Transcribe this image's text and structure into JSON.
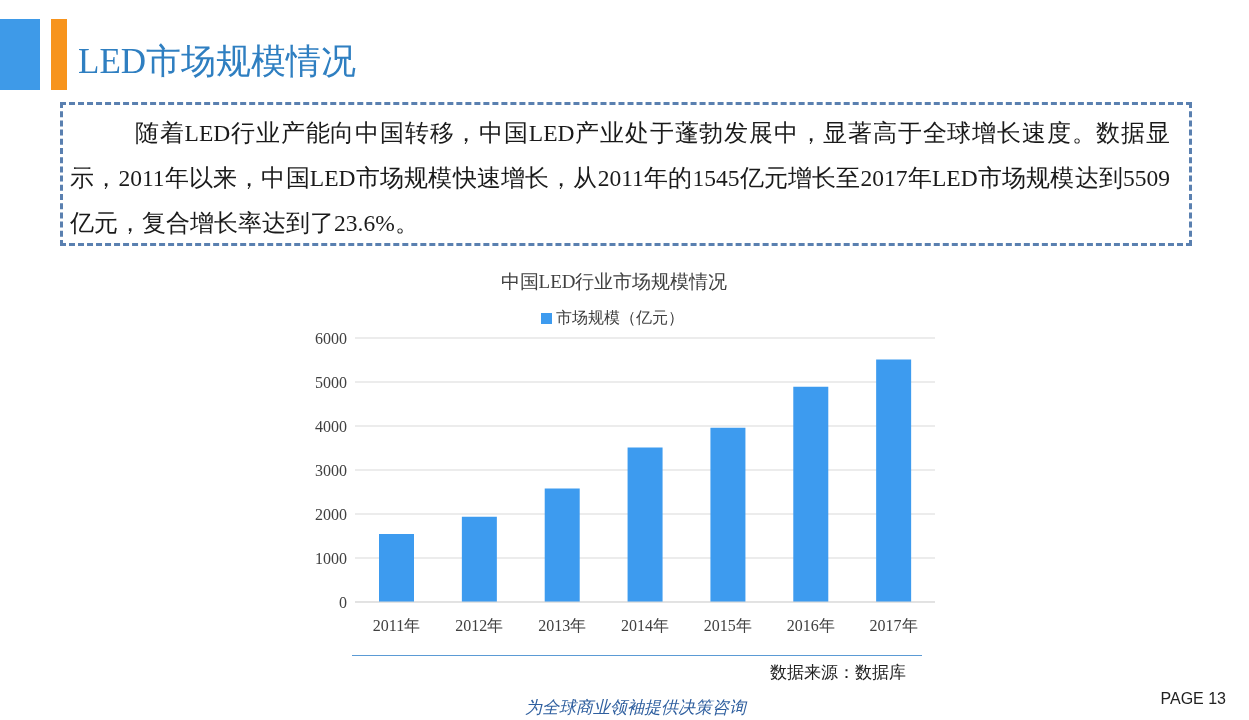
{
  "chart_data": {
    "type": "bar",
    "title": "中国LED行业市场规模情况",
    "categories": [
      "2011年",
      "2012年",
      "2013年",
      "2014年",
      "2015年",
      "2016年",
      "2017年"
    ],
    "series": [
      {
        "name": "市场规模（亿元）",
        "color": "#3d9bef",
        "values": [
          1545,
          1940,
          2580,
          3510,
          3960,
          4890,
          5509
        ]
      }
    ],
    "ylim": [
      0,
      6000
    ],
    "yticks": [
      0,
      1000,
      2000,
      3000,
      4000,
      5000,
      6000
    ],
    "grid": "y",
    "legend": "top",
    "annotations": [
      "LED市场规模情况",
      "随着LED行业产能向中国转移，中国LED产业处于蓬勃发展中，显著高于全球增长速度。数据显示，2011年以来，中国LED市场规模快速增长，从2011年的1545亿元增长至2017年LED市场规模达到5509亿元，复合增长率达到了23.6%。",
      "数据来源：数据库",
      "为全球商业领袖提供决策咨询",
      "PAGE 13"
    ]
  }
}
